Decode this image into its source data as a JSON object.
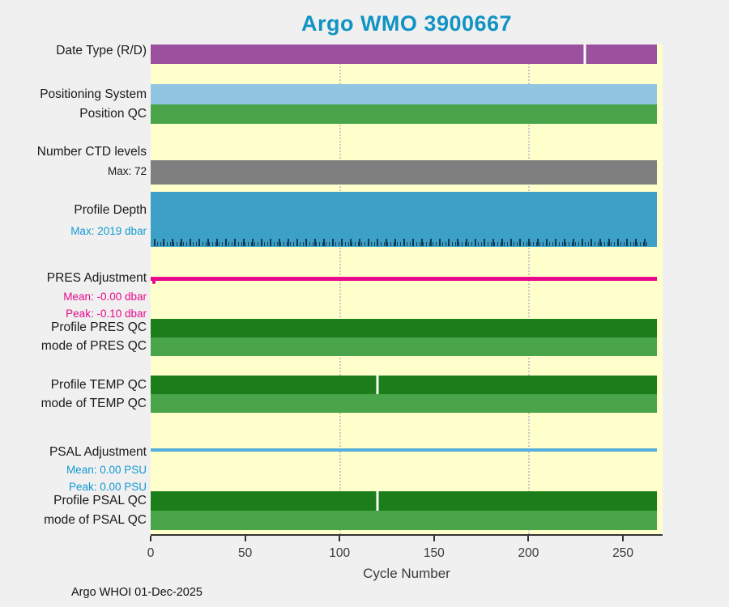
{
  "title": "Argo WMO 3900667",
  "footer": "Argo WHOI 01-Dec-2025",
  "x_axis": {
    "label": "Cycle Number",
    "ticks": [
      "0",
      "50",
      "100",
      "150",
      "200",
      "250"
    ],
    "tick_values": [
      0,
      50,
      100,
      150,
      200,
      250
    ],
    "gridline_cycles": [
      100,
      200
    ],
    "axis_max": 271
  },
  "chart_data": {
    "type": "bar",
    "subtype": "horizontal-status-timeline",
    "x_range": [
      0,
      268
    ],
    "grid": "vertical-dotted",
    "rows": [
      {
        "name": "date_type",
        "label": "Date Type (R/D)",
        "color": "#9C519E",
        "start": 0,
        "end": 268,
        "white_tick_cycle": 230
      },
      {
        "name": "positioning_system",
        "label": "Positioning System",
        "color": "#90C6E2",
        "start": 0,
        "end": 268
      },
      {
        "name": "position_qc",
        "label": "Position QC",
        "color": "#4AA44A",
        "start": 0,
        "end": 268
      },
      {
        "name": "number_ctd_levels",
        "label": "Number CTD levels",
        "sublabel": "Max: 72",
        "color": "#7F7F7F",
        "start": 0,
        "end": 268
      },
      {
        "name": "profile_depth",
        "label": "Profile Depth",
        "sublabel": "Max: 2019 dbar",
        "color": "#3DA0C6",
        "start": 0,
        "end": 268,
        "has_depth_tick_marks": true
      },
      {
        "name": "pres_adjustment",
        "label": "PRES Adjustment",
        "mean": "Mean: -0.00 dbar",
        "peak": "Peak: -0.10 dbar",
        "color": "#E8098C",
        "start": 0,
        "end": 268
      },
      {
        "name": "profile_pres_qc",
        "label": "Profile PRES QC",
        "color": "#1B7E1B",
        "start": 0,
        "end": 268
      },
      {
        "name": "mode_pres_qc",
        "label": "mode of PRES QC",
        "color": "#4AA44A",
        "start": 0,
        "end": 268
      },
      {
        "name": "profile_temp_qc",
        "label": "Profile TEMP QC",
        "color": "#1B7E1B",
        "start": 0,
        "end": 268,
        "white_tick_cycle": 120
      },
      {
        "name": "mode_temp_qc",
        "label": "mode of TEMP QC",
        "color": "#4AA44A",
        "start": 0,
        "end": 268
      },
      {
        "name": "psal_adjustment",
        "label": "PSAL Adjustment",
        "mean": "Mean: 0.00 PSU",
        "peak": "Peak: 0.00 PSU",
        "color": "#55AEDC",
        "start": 0,
        "end": 268
      },
      {
        "name": "profile_psal_qc",
        "label": "Profile PSAL QC",
        "color": "#1B7E1B",
        "start": 0,
        "end": 268,
        "white_tick_cycle": 120
      },
      {
        "name": "mode_psal_qc",
        "label": "mode of PSAL QC",
        "color": "#4AA44A",
        "start": 0,
        "end": 268
      }
    ],
    "colors": {
      "title": "#1193C3",
      "plot_background": "#FFFFCC",
      "page_background": "#F0F0F0",
      "annotation_magenta": "#E8098C",
      "annotation_blue": "#1299D2",
      "gridline": "#C9C9C9",
      "axis": "#333333"
    }
  }
}
